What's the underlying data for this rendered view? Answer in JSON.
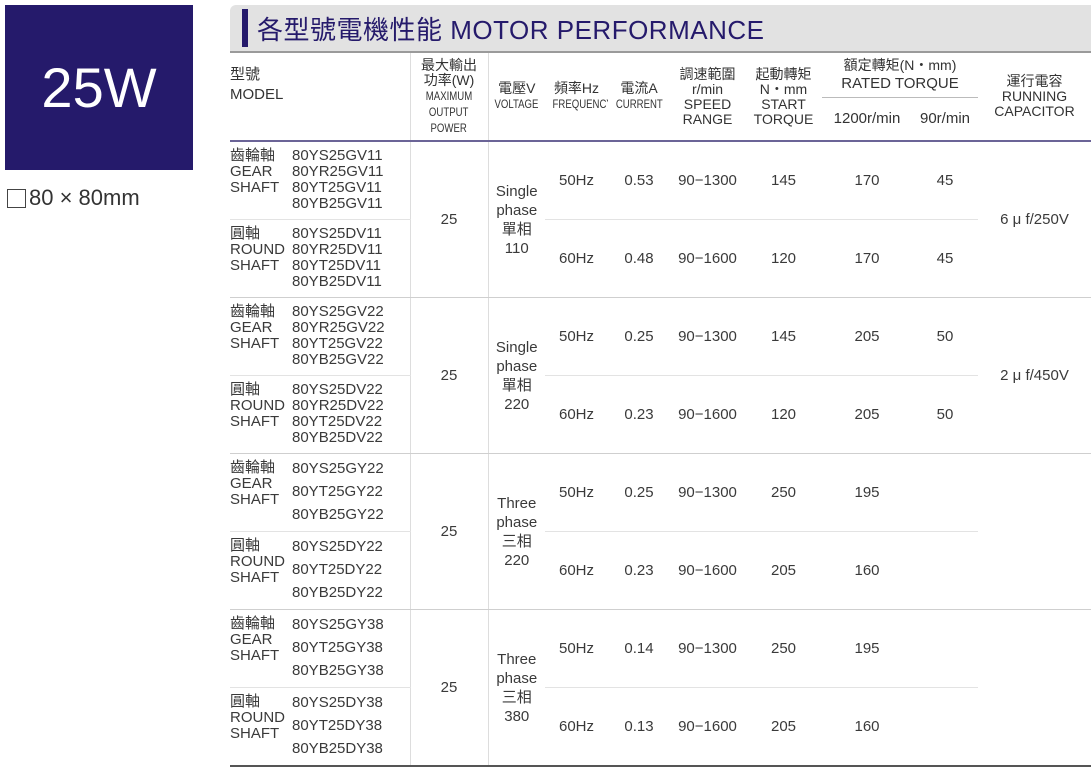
{
  "badge": {
    "power": "25W",
    "frame_size": "80 × 80mm"
  },
  "title": "各型號電機性能 MOTOR PERFORMANCE",
  "headers": {
    "model": [
      "型號",
      "MODEL"
    ],
    "power": [
      "最大輸出",
      "功率(W)",
      "MAXIMUM",
      "OUTPUT",
      "POWER"
    ],
    "voltage": [
      "電壓V",
      "VOLTAGE"
    ],
    "frequency": [
      "頻率Hz",
      "FREQUENCY"
    ],
    "current": [
      "電流A",
      "CURRENT"
    ],
    "speed": [
      "調速範圍",
      "r/min",
      "SPEED",
      "RANGE"
    ],
    "start_torque": [
      "起動轉矩",
      "N・mm",
      "START",
      "TORQUE"
    ],
    "rated_torque": [
      "額定轉矩(N・mm)",
      "RATED TORQUE"
    ],
    "rated_1200": "1200r/min",
    "rated_90": "90r/min",
    "capacitor": [
      "運行電容",
      "RUNNING",
      "CAPACITOR"
    ]
  },
  "groups": [
    {
      "power": "25",
      "voltage": [
        "Single",
        "phase",
        "單相",
        "110"
      ],
      "capacitor": "6 μ f/250V",
      "subrows": [
        {
          "shaft": [
            "齒輪軸",
            "GEAR",
            "SHAFT"
          ],
          "models": [
            "80YS25GV11",
            "80YR25GV11",
            "80YT25GV11",
            "80YB25GV11"
          ],
          "freq": "50Hz",
          "current": "0.53",
          "speed": "90−1300",
          "start": "145",
          "r1200": "170",
          "r90": "45"
        },
        {
          "shaft": [
            "圓軸",
            "ROUND",
            "SHAFT"
          ],
          "models": [
            "80YS25DV11",
            "80YR25DV11",
            "80YT25DV11",
            "80YB25DV11"
          ],
          "freq": "60Hz",
          "current": "0.48",
          "speed": "90−1600",
          "start": "120",
          "r1200": "170",
          "r90": "45"
        }
      ]
    },
    {
      "power": "25",
      "voltage": [
        "Single",
        "phase",
        "單相",
        "220"
      ],
      "capacitor": "2 μ f/450V",
      "subrows": [
        {
          "shaft": [
            "齒輪軸",
            "GEAR",
            "SHAFT"
          ],
          "models": [
            "80YS25GV22",
            "80YR25GV22",
            "80YT25GV22",
            "80YB25GV22"
          ],
          "freq": "50Hz",
          "current": "0.25",
          "speed": "90−1300",
          "start": "145",
          "r1200": "205",
          "r90": "50"
        },
        {
          "shaft": [
            "圓軸",
            "ROUND",
            "SHAFT"
          ],
          "models": [
            "80YS25DV22",
            "80YR25DV22",
            "80YT25DV22",
            "80YB25DV22"
          ],
          "freq": "60Hz",
          "current": "0.23",
          "speed": "90−1600",
          "start": "120",
          "r1200": "205",
          "r90": "50"
        }
      ]
    },
    {
      "power": "25",
      "voltage": [
        "Three",
        "phase",
        "三相",
        "220"
      ],
      "capacitor": "",
      "subrows": [
        {
          "shaft": [
            "齒輪軸",
            "GEAR",
            "SHAFT"
          ],
          "models": [
            "80YS25GY22",
            "80YT25GY22",
            "80YB25GY22"
          ],
          "freq": "50Hz",
          "current": "0.25",
          "speed": "90−1300",
          "start": "250",
          "r1200": "195",
          "r90": ""
        },
        {
          "shaft": [
            "圓軸",
            "ROUND",
            "SHAFT"
          ],
          "models": [
            "80YS25DY22",
            "80YT25DY22",
            "80YB25DY22"
          ],
          "freq": "60Hz",
          "current": "0.23",
          "speed": "90−1600",
          "start": "205",
          "r1200": "160",
          "r90": ""
        }
      ]
    },
    {
      "power": "25",
      "voltage": [
        "Three",
        "phase",
        "三相",
        "380"
      ],
      "capacitor": "",
      "subrows": [
        {
          "shaft": [
            "齒輪軸",
            "GEAR",
            "SHAFT"
          ],
          "models": [
            "80YS25GY38",
            "80YT25GY38",
            "80YB25GY38"
          ],
          "freq": "50Hz",
          "current": "0.14",
          "speed": "90−1300",
          "start": "250",
          "r1200": "195",
          "r90": ""
        },
        {
          "shaft": [
            "圓軸",
            "ROUND",
            "SHAFT"
          ],
          "models": [
            "80YS25DY38",
            "80YT25DY38",
            "80YB25DY38"
          ],
          "freq": "60Hz",
          "current": "0.13",
          "speed": "90−1600",
          "start": "205",
          "r1200": "160",
          "r90": ""
        }
      ]
    }
  ]
}
